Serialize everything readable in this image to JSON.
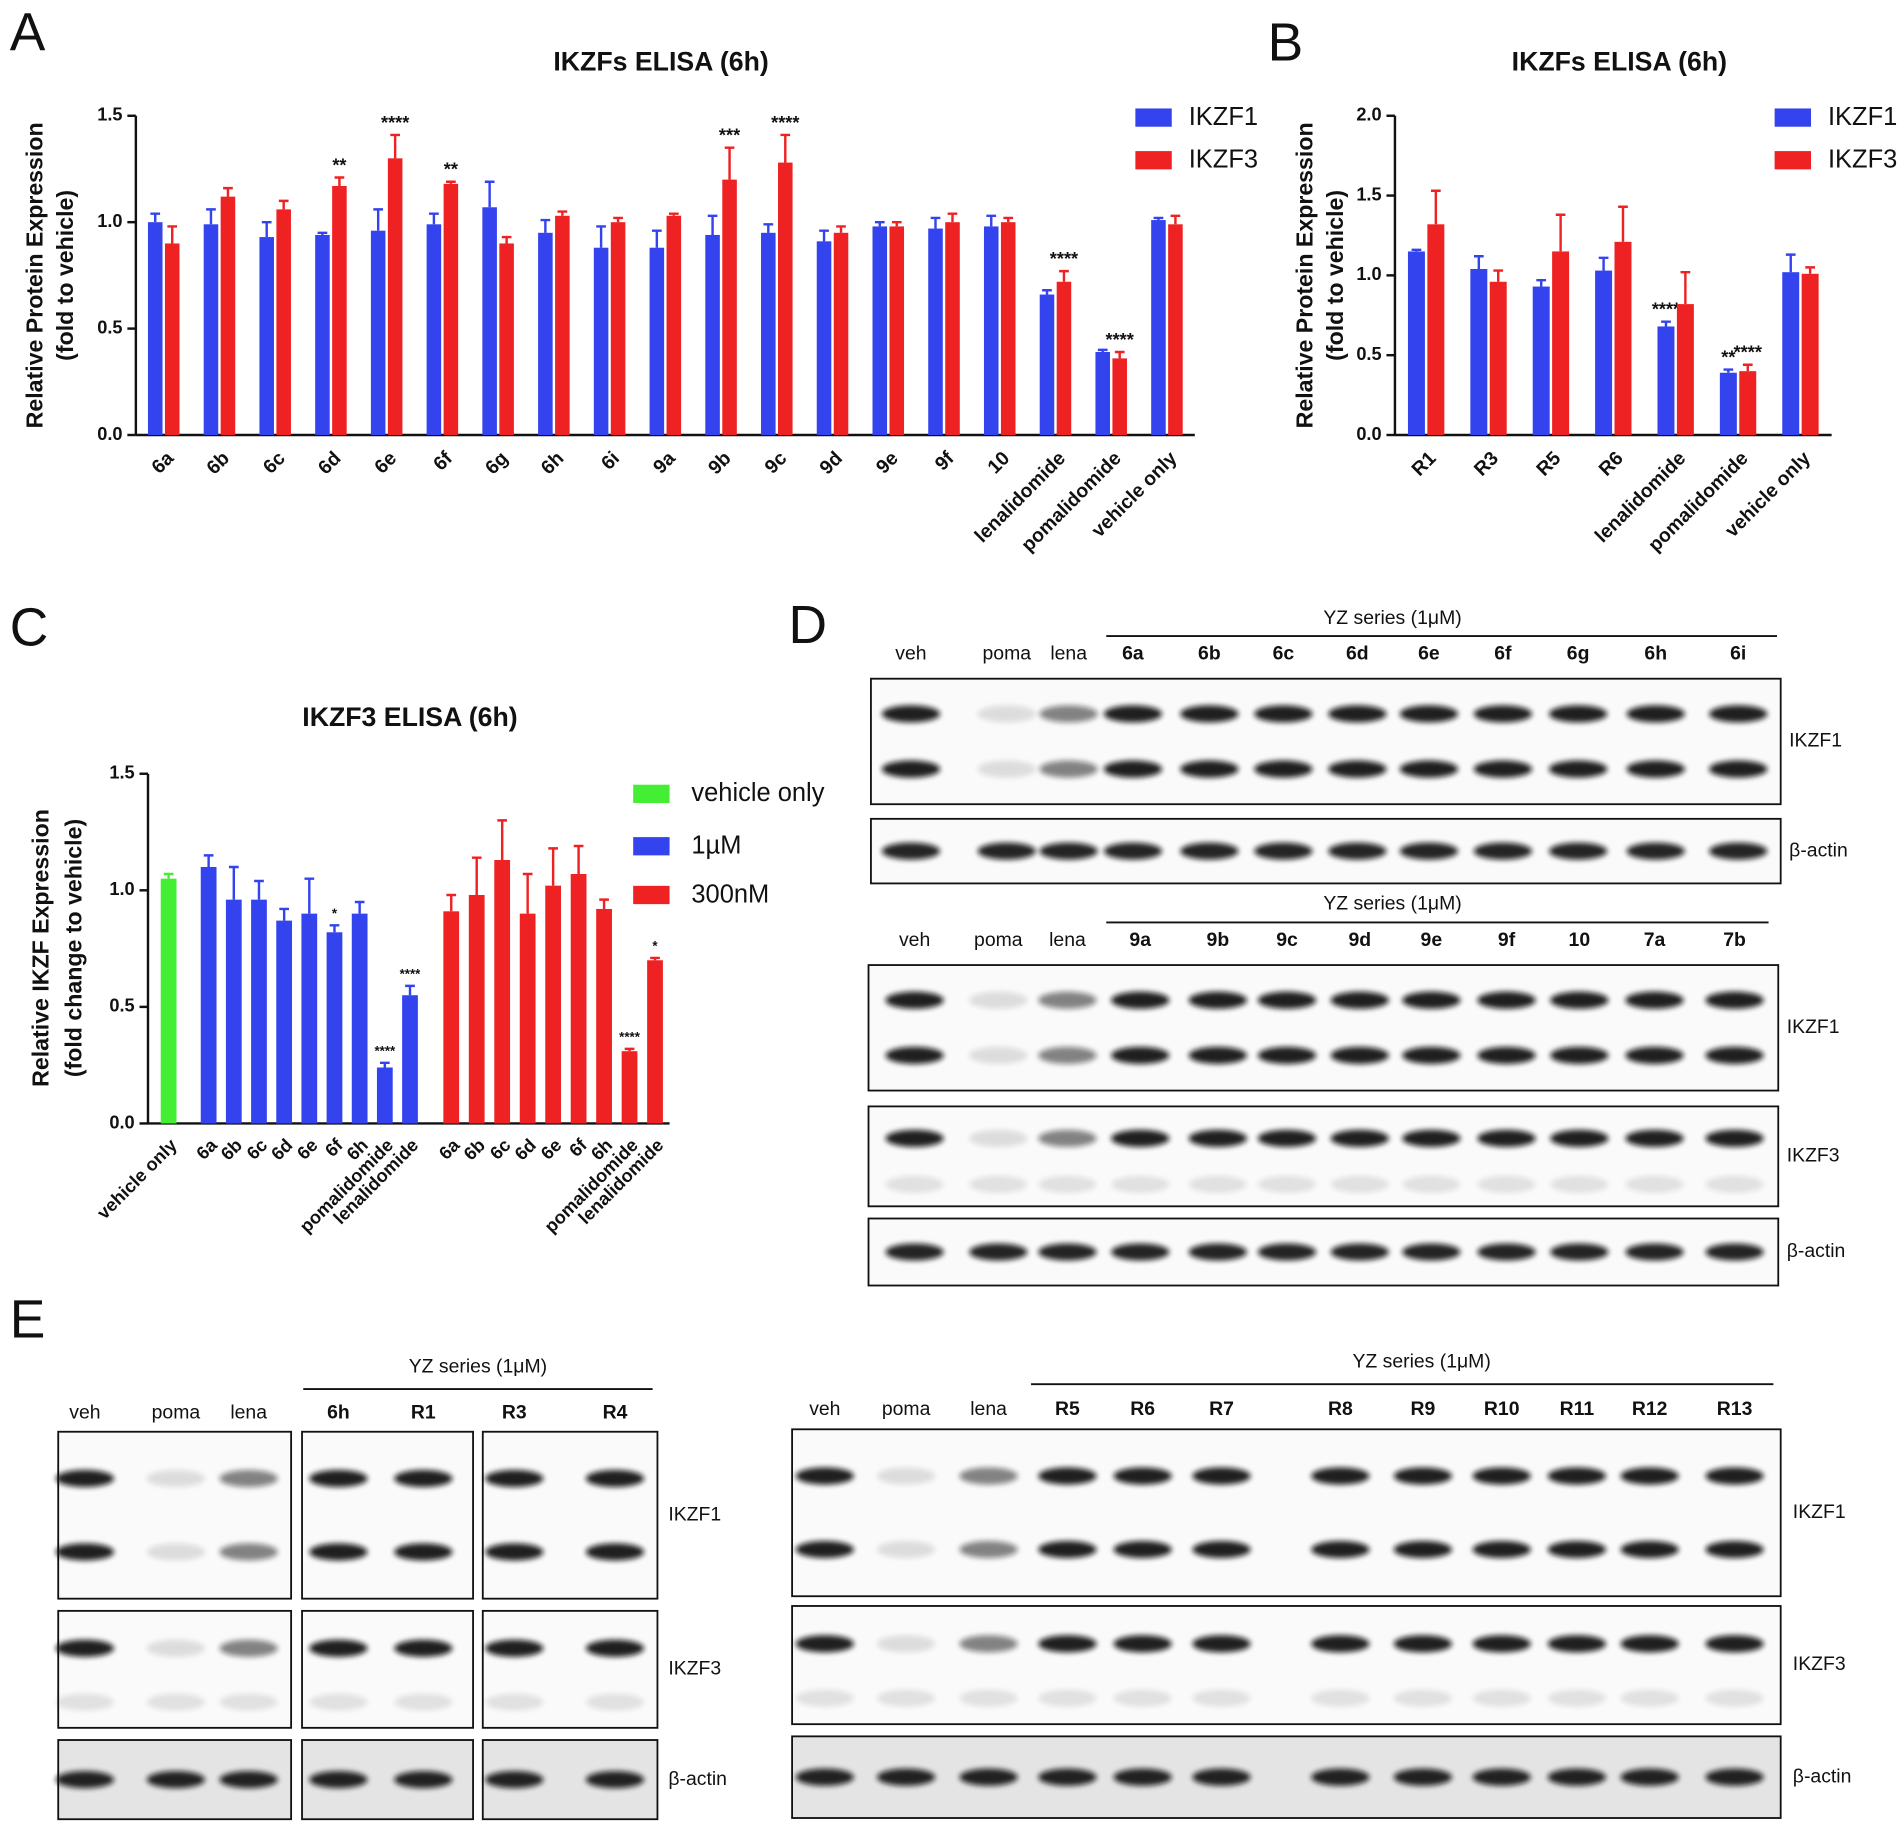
{
  "panel_labels": [
    "A",
    "B",
    "C",
    "D",
    "E"
  ],
  "chart_data": [
    {
      "type": "bar",
      "title": "IKZFs ELISA (6h)",
      "ylabel": [
        "Relative Protein Expression",
        "(fold to vehicle)"
      ],
      "categories": [
        "6a",
        "6b",
        "6c",
        "6d",
        "6e",
        "6f",
        "6g",
        "6h",
        "6i",
        "9a",
        "9b",
        "9c",
        "9d",
        "9e",
        "9f",
        "10",
        "lenalidomide",
        "pomalidomide",
        "vehicle only"
      ],
      "ylim": [
        0,
        1.5
      ],
      "yticks": [
        {
          "value": 0,
          "label": "0.0"
        },
        {
          "value": 0.5,
          "label": "0.5"
        },
        {
          "value": 1,
          "label": "1.0"
        },
        {
          "value": 1.5,
          "label": "1.5"
        }
      ],
      "series": [
        {
          "name": "IKZF1",
          "color": "#3344ee",
          "values": [
            1.0,
            0.99,
            0.93,
            0.94,
            0.96,
            0.99,
            1.07,
            0.95,
            0.88,
            0.88,
            0.94,
            0.95,
            0.91,
            0.98,
            0.97,
            0.98,
            0.66,
            0.39,
            1.01
          ],
          "errors": [
            0.04,
            0.07,
            0.07,
            0.01,
            0.1,
            0.05,
            0.12,
            0.06,
            0.1,
            0.08,
            0.09,
            0.04,
            0.05,
            0.02,
            0.05,
            0.05,
            0.02,
            0.01,
            0.01
          ],
          "significance": [
            null,
            null,
            null,
            null,
            null,
            null,
            null,
            null,
            null,
            null,
            null,
            null,
            null,
            null,
            null,
            null,
            null,
            null,
            null
          ]
        },
        {
          "name": "IKZF3",
          "color": "#ee2222",
          "values": [
            0.9,
            1.12,
            1.06,
            1.17,
            1.3,
            1.18,
            0.9,
            1.03,
            1.0,
            1.03,
            1.2,
            1.28,
            0.95,
            0.98,
            1.0,
            1.0,
            0.72,
            0.36,
            0.99
          ],
          "errors": [
            0.08,
            0.04,
            0.04,
            0.04,
            0.11,
            0.01,
            0.03,
            0.02,
            0.02,
            0.01,
            0.15,
            0.13,
            0.03,
            0.02,
            0.04,
            0.02,
            0.05,
            0.03,
            0.04
          ],
          "significance": [
            null,
            null,
            null,
            "**",
            "****",
            "**",
            null,
            null,
            null,
            null,
            "***",
            "****",
            null,
            null,
            null,
            null,
            "****",
            "****",
            null
          ]
        }
      ]
    },
    {
      "type": "bar",
      "title": "IKZFs ELISA (6h)",
      "ylabel": [
        "Relative Protein Expression",
        "(fold to vehicle)"
      ],
      "categories": [
        "R1",
        "R3",
        "R5",
        "R6",
        "lenalidomide",
        "pomalidomide",
        "vehicle only"
      ],
      "ylim": [
        0,
        2
      ],
      "yticks": [
        {
          "value": 0,
          "label": "0.0"
        },
        {
          "value": 0.5,
          "label": "0.5"
        },
        {
          "value": 1,
          "label": "1.0"
        },
        {
          "value": 1.5,
          "label": "1.5"
        },
        {
          "value": 2,
          "label": "2.0"
        }
      ],
      "series": [
        {
          "name": "IKZF1",
          "color": "#3344ee",
          "values": [
            1.15,
            1.04,
            0.93,
            1.03,
            0.68,
            0.39,
            1.02
          ],
          "errors": [
            0.01,
            0.08,
            0.04,
            0.08,
            0.03,
            0.02,
            0.11
          ],
          "significance": [
            null,
            null,
            null,
            null,
            "****",
            "**",
            null
          ]
        },
        {
          "name": "IKZF3",
          "color": "#ee2222",
          "values": [
            1.32,
            0.96,
            1.15,
            1.21,
            0.82,
            0.4,
            1.01
          ],
          "errors": [
            0.21,
            0.07,
            0.23,
            0.22,
            0.2,
            0.04,
            0.04
          ],
          "significance": [
            null,
            null,
            null,
            null,
            null,
            "****",
            null
          ]
        }
      ]
    },
    {
      "type": "bar",
      "title": "IKZF3 ELISA (6h)",
      "ylabel": [
        "Relative IKZF Expression",
        "(fold change to vehicle)"
      ],
      "ylim": [
        0,
        1.5
      ],
      "yticks": [
        {
          "value": 0,
          "label": "0.0"
        },
        {
          "value": 0.5,
          "label": "0.5"
        },
        {
          "value": 1,
          "label": "1.0"
        },
        {
          "value": 1.5,
          "label": "1.5"
        }
      ],
      "series": [
        {
          "name": "vehicle only",
          "color": "#44ee33",
          "categories": [
            "vehicle only"
          ],
          "values": [
            1.05
          ],
          "errors": [
            0.02
          ],
          "significance": [
            null
          ]
        },
        {
          "name": "1µM",
          "color": "#3344ee",
          "categories": [
            "6a",
            "6b",
            "6c",
            "6d",
            "6e",
            "6f",
            "6h",
            "pomalidomide",
            "lenalidomide"
          ],
          "values": [
            1.1,
            0.96,
            0.96,
            0.87,
            0.9,
            0.82,
            0.9,
            0.24,
            0.55
          ],
          "errors": [
            0.05,
            0.14,
            0.08,
            0.05,
            0.15,
            0.03,
            0.05,
            0.02,
            0.04
          ],
          "significance": [
            null,
            null,
            null,
            null,
            null,
            "*",
            null,
            "****",
            "****"
          ]
        },
        {
          "name": "300nM",
          "color": "#ee2222",
          "categories": [
            "6a",
            "6b",
            "6c",
            "6d",
            "6e",
            "6f",
            "6h",
            "pomalidomide",
            "lenalidomide"
          ],
          "values": [
            0.91,
            0.98,
            1.13,
            0.9,
            1.02,
            1.07,
            0.92,
            0.31,
            0.7
          ],
          "errors": [
            0.07,
            0.16,
            0.17,
            0.17,
            0.16,
            0.12,
            0.04,
            0.01,
            0.01
          ],
          "significance": [
            null,
            null,
            null,
            null,
            null,
            null,
            null,
            "****",
            "*"
          ]
        }
      ]
    }
  ],
  "blots": [
    {
      "header": "YZ series (1μM)",
      "lanes": [
        "veh",
        "poma",
        "lena",
        "6a",
        "6b",
        "6c",
        "6d",
        "6e",
        "6f",
        "6g",
        "6h",
        "6i"
      ],
      "rows": [
        "IKZF1",
        "β-actin"
      ]
    },
    {
      "header": "YZ series (1μM)",
      "lanes": [
        "veh",
        "poma",
        "lena",
        "9a",
        "9b",
        "9c",
        "9d",
        "9e",
        "9f",
        "10",
        "7a",
        "7b"
      ],
      "rows": [
        "IKZF1",
        "IKZF3",
        "β-actin"
      ]
    },
    {
      "header": "YZ series (1μM)",
      "lanes": [
        "veh",
        "poma",
        "lena",
        "6h",
        "R1",
        "R3",
        "R4"
      ],
      "rows": [
        "IKZF1",
        "IKZF3",
        "β-actin"
      ]
    },
    {
      "header": "YZ series (1μM)",
      "lanes": [
        "veh",
        "poma",
        "lena",
        "R5",
        "R6",
        "R7",
        "R8",
        "R9",
        "R10",
        "R11",
        "R12",
        "R13"
      ],
      "rows": [
        "IKZF1",
        "IKZF3",
        "β-actin"
      ]
    }
  ]
}
